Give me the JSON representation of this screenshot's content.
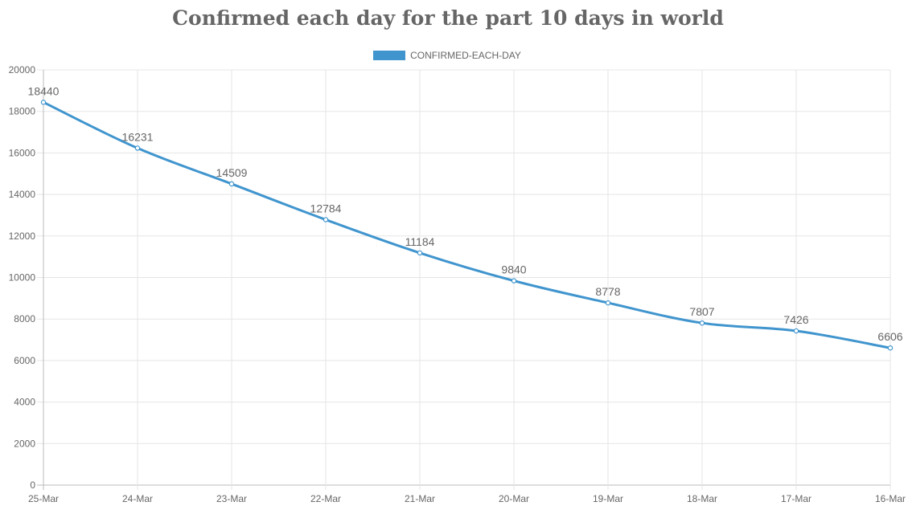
{
  "chart_data": {
    "type": "line",
    "title": "Confirmed each day for the part 10 days in world",
    "categories": [
      "25-Mar",
      "24-Mar",
      "23-Mar",
      "22-Mar",
      "21-Mar",
      "20-Mar",
      "19-Mar",
      "18-Mar",
      "17-Mar",
      "16-Mar"
    ],
    "series": [
      {
        "name": "CONFIRMED-EACH-DAY",
        "values": [
          18440,
          16231,
          14509,
          12784,
          11184,
          9840,
          8778,
          7807,
          7426,
          6606
        ],
        "color": "#4095ce"
      }
    ],
    "ylim": [
      0,
      20000
    ],
    "yticks": [
      0,
      2000,
      4000,
      6000,
      8000,
      10000,
      12000,
      14000,
      16000,
      18000,
      20000
    ],
    "grid": true,
    "legend_position": "top"
  }
}
